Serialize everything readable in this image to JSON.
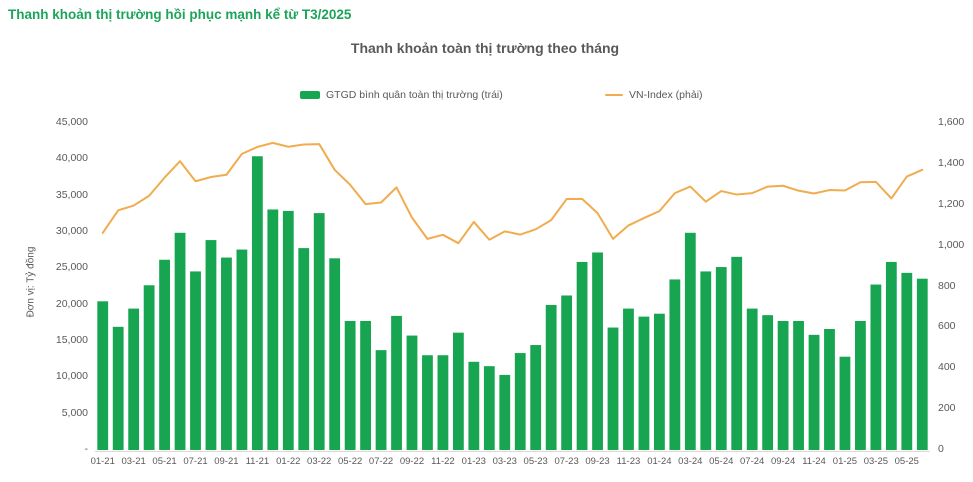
{
  "page": {
    "header": "Thanh khoản thị trường hồi phục mạnh kể từ T3/2025"
  },
  "colors": {
    "header_green": "#1CA458",
    "bar_green": "#17A551",
    "line_orange": "#F0AC4E",
    "text_gray": "#595959",
    "axis_line_gray": "#D9D9D9"
  },
  "chart_data": {
    "type": "bar",
    "title": "Thanh khoản toàn thị trường theo tháng",
    "legend_position": "top",
    "grid": "off",
    "ylabel_left": "Đơn vị: Tỷ đồng",
    "ylim_left": [
      0,
      45000
    ],
    "ylim_right": [
      0,
      1600
    ],
    "y_ticks_left": [
      "45,000",
      "40,000",
      "35,000",
      "30,000",
      "25,000",
      "20,000",
      "15,000",
      "10,000",
      "5,000",
      "-"
    ],
    "y_ticks_right": [
      "1,600",
      "1,400",
      "1,200",
      "1,000",
      "800",
      "600",
      "400",
      "200",
      "0"
    ],
    "x_tick_labels": [
      "01-21",
      "03-21",
      "05-21",
      "07-21",
      "09-21",
      "11-21",
      "01-22",
      "03-22",
      "05-22",
      "07-22",
      "09-22",
      "11-22",
      "01-23",
      "03-23",
      "05-23",
      "07-23",
      "09-23",
      "11-23",
      "01-24",
      "03-24",
      "05-24",
      "07-24",
      "09-24",
      "11-24",
      "01-25",
      "03-25",
      "05-25"
    ],
    "categories": [
      "01-21",
      "02-21",
      "03-21",
      "04-21",
      "05-21",
      "06-21",
      "07-21",
      "08-21",
      "09-21",
      "10-21",
      "11-21",
      "12-21",
      "01-22",
      "02-22",
      "03-22",
      "04-22",
      "05-22",
      "06-22",
      "07-22",
      "08-22",
      "09-22",
      "10-22",
      "11-22",
      "12-22",
      "01-23",
      "02-23",
      "03-23",
      "04-23",
      "05-23",
      "06-23",
      "07-23",
      "08-23",
      "09-23",
      "10-23",
      "11-23",
      "12-23",
      "01-24",
      "02-24",
      "03-24",
      "04-24",
      "05-24",
      "06-24",
      "07-24",
      "08-24",
      "09-24",
      "10-24",
      "11-24",
      "12-24",
      "01-25",
      "02-25",
      "03-25",
      "04-25",
      "05-25",
      "06-25"
    ],
    "series": [
      {
        "name": "GTGD bình quân toàn thị trường (trái)",
        "type": "bar",
        "axis": "left",
        "values": [
          20400,
          16900,
          19400,
          22600,
          26100,
          29800,
          24500,
          28800,
          26400,
          27500,
          40300,
          33000,
          32800,
          27700,
          32500,
          26300,
          17700,
          17700,
          13700,
          18400,
          15700,
          13000,
          13000,
          16100,
          12100,
          11500,
          10300,
          13300,
          14400,
          19900,
          21200,
          25800,
          27100,
          16800,
          19400,
          18300,
          18700,
          23400,
          29800,
          24500,
          25100,
          26500,
          19400,
          18500,
          17700,
          17700,
          15800,
          16600,
          12800,
          17700,
          22700,
          25800,
          24300,
          23500
        ]
      },
      {
        "name": "VN-Index (phải)",
        "type": "line",
        "axis": "right",
        "values": [
          1057,
          1168,
          1191,
          1239,
          1328,
          1408,
          1310,
          1331,
          1342,
          1444,
          1478,
          1498,
          1479,
          1490,
          1492,
          1366,
          1293,
          1198,
          1206,
          1280,
          1132,
          1028,
          1048,
          1007,
          1111,
          1024,
          1065,
          1049,
          1075,
          1120,
          1223,
          1224,
          1154,
          1028,
          1094,
          1130,
          1164,
          1252,
          1284,
          1210,
          1262,
          1245,
          1252,
          1284,
          1288,
          1264,
          1250,
          1267,
          1265,
          1305,
          1307,
          1226,
          1333,
          1366
        ]
      }
    ]
  }
}
